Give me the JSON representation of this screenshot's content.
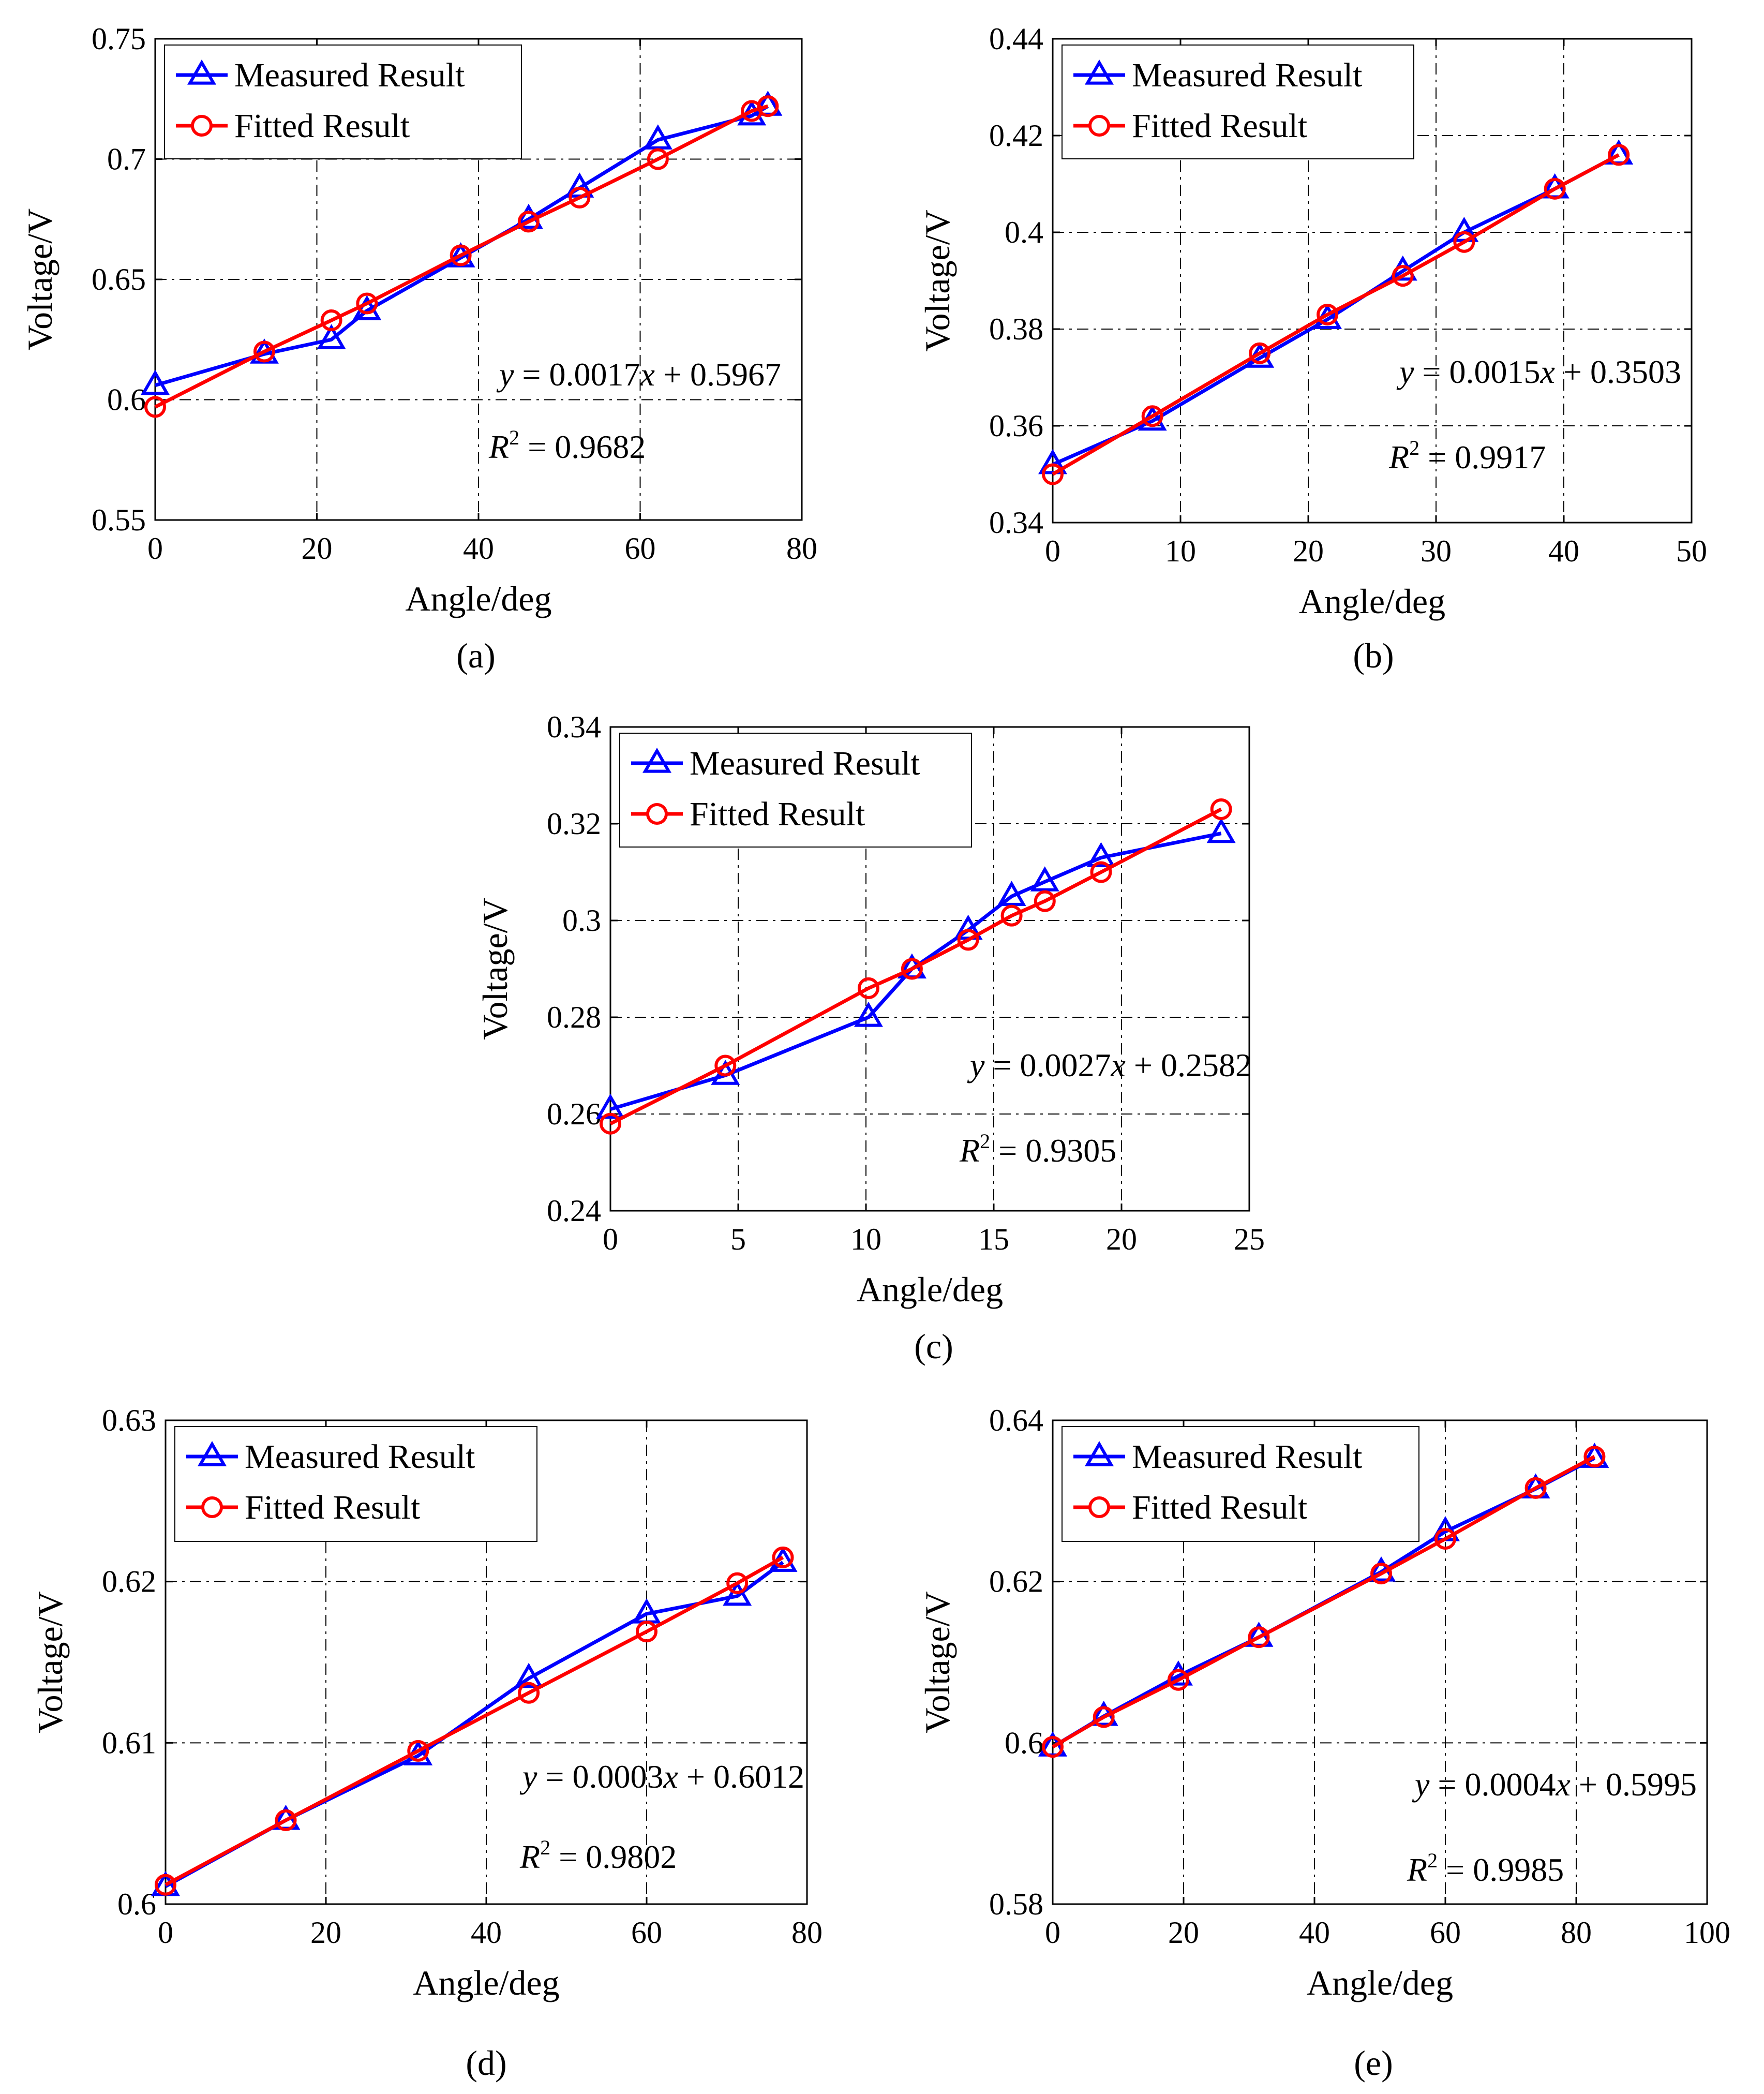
{
  "figure": {
    "background": "#ffffff"
  },
  "colors": {
    "measured": "#0000ff",
    "fitted": "#ff0000",
    "axis": "#000000",
    "grid": "#000000"
  },
  "chart_data": [
    {
      "id": "a",
      "type": "line",
      "panel_label": "(a)",
      "xlabel": "Angle/deg",
      "ylabel": "Voltage/V",
      "xlim": [
        0,
        80
      ],
      "ylim": [
        0.55,
        0.75
      ],
      "x_ticks": [
        0,
        20,
        40,
        60,
        80
      ],
      "y_ticks": [
        0.55,
        0.6,
        0.65,
        0.7,
        0.75
      ],
      "x_tick_labels": [
        "0",
        "20",
        "40",
        "60",
        "80"
      ],
      "y_tick_labels": [
        "0.55",
        "0.6",
        "0.65",
        "0.7",
        "0.75"
      ],
      "grid": true,
      "legend": {
        "position": "top-left",
        "entries": [
          "Measured Result",
          "Fitted Result"
        ]
      },
      "equation": {
        "lhs": "y",
        "eq": " = 0.0017",
        "x": "x",
        "rest": " + 0.5967"
      },
      "r2": {
        "r": "R",
        "sup": "2",
        "rest": " = 0.9682"
      },
      "series": [
        {
          "name": "Measured Result",
          "marker": "triangle",
          "x": [
            0,
            13.5,
            21.8,
            26.2,
            37.8,
            46.2,
            52.5,
            62.2,
            73.8,
            75.8
          ],
          "y": [
            0.606,
            0.619,
            0.625,
            0.637,
            0.659,
            0.675,
            0.688,
            0.708,
            0.718,
            0.722
          ]
        },
        {
          "name": "Fitted Result",
          "marker": "circle",
          "x": [
            0,
            13.5,
            21.8,
            26.2,
            37.8,
            46.2,
            52.5,
            62.2,
            73.8,
            75.8
          ],
          "y": [
            0.597,
            0.62,
            0.633,
            0.64,
            0.66,
            0.674,
            0.684,
            0.7,
            0.72,
            0.722
          ]
        }
      ]
    },
    {
      "id": "b",
      "type": "line",
      "panel_label": "(b)",
      "xlabel": "Angle/deg",
      "ylabel": "Voltage/V",
      "xlim": [
        0,
        50
      ],
      "ylim": [
        0.34,
        0.44
      ],
      "x_ticks": [
        0,
        10,
        20,
        30,
        40,
        50
      ],
      "y_ticks": [
        0.34,
        0.36,
        0.38,
        0.4,
        0.42,
        0.44
      ],
      "x_tick_labels": [
        "0",
        "10",
        "20",
        "30",
        "40",
        "50"
      ],
      "y_tick_labels": [
        "0.34",
        "0.36",
        "0.38",
        "0.4",
        "0.42",
        "0.44"
      ],
      "grid": true,
      "legend": {
        "position": "top-left",
        "entries": [
          "Measured Result",
          "Fitted Result"
        ]
      },
      "equation": {
        "lhs": "y",
        "eq": " = 0.0015",
        "x": "x",
        "rest": " + 0.3503"
      },
      "r2": {
        "r": "R",
        "sup": "2",
        "rest": " = 0.9917"
      },
      "series": [
        {
          "name": "Measured Result",
          "marker": "triangle",
          "x": [
            0,
            7.8,
            16.2,
            21.5,
            27.4,
            32.2,
            39.3,
            44.3
          ],
          "y": [
            0.352,
            0.361,
            0.374,
            0.382,
            0.392,
            0.4,
            0.409,
            0.416
          ]
        },
        {
          "name": "Fitted Result",
          "marker": "circle",
          "x": [
            0,
            7.8,
            16.2,
            21.5,
            27.4,
            32.2,
            39.3,
            44.3
          ],
          "y": [
            0.35,
            0.362,
            0.375,
            0.383,
            0.391,
            0.398,
            0.409,
            0.416
          ]
        }
      ]
    },
    {
      "id": "c",
      "type": "line",
      "panel_label": "(c)",
      "xlabel": "Angle/deg",
      "ylabel": "Voltage/V",
      "xlim": [
        0,
        25
      ],
      "ylim": [
        0.24,
        0.34
      ],
      "x_ticks": [
        0,
        5,
        10,
        15,
        20,
        25
      ],
      "y_ticks": [
        0.24,
        0.26,
        0.28,
        0.3,
        0.32,
        0.34
      ],
      "x_tick_labels": [
        "0",
        "5",
        "10",
        "15",
        "20",
        "25"
      ],
      "y_tick_labels": [
        "0.24",
        "0.26",
        "0.28",
        "0.3",
        "0.32",
        "0.34"
      ],
      "grid": true,
      "legend": {
        "position": "top-left",
        "entries": [
          "Measured Result",
          "Fitted Result"
        ]
      },
      "equation": {
        "lhs": "y",
        "eq": " = 0.0027",
        "x": "x",
        "rest": " + 0.2582"
      },
      "r2": {
        "r": "R",
        "sup": "2",
        "rest": " = 0.9305"
      },
      "series": [
        {
          "name": "Measured Result",
          "marker": "triangle",
          "x": [
            0,
            4.5,
            10.1,
            11.8,
            14.0,
            15.7,
            17.0,
            19.2,
            23.9
          ],
          "y": [
            0.261,
            0.268,
            0.28,
            0.29,
            0.298,
            0.305,
            0.308,
            0.313,
            0.318
          ]
        },
        {
          "name": "Fitted Result",
          "marker": "circle",
          "x": [
            0,
            4.5,
            10.1,
            11.8,
            14.0,
            15.7,
            17.0,
            19.2,
            23.9
          ],
          "y": [
            0.258,
            0.27,
            0.286,
            0.29,
            0.296,
            0.301,
            0.304,
            0.31,
            0.323
          ]
        }
      ]
    },
    {
      "id": "d",
      "type": "line",
      "panel_label": "(d)",
      "xlabel": "Angle/deg",
      "ylabel": "Voltage/V",
      "xlim": [
        0,
        80
      ],
      "ylim": [
        0.6,
        0.63
      ],
      "x_ticks": [
        0,
        20,
        40,
        60,
        80
      ],
      "y_ticks": [
        0.6,
        0.61,
        0.62,
        0.63
      ],
      "x_tick_labels": [
        "0",
        "20",
        "40",
        "60",
        "80"
      ],
      "y_tick_labels": [
        "0.6",
        "0.61",
        "0.62",
        "0.63"
      ],
      "grid": true,
      "legend": {
        "position": "top-left",
        "entries": [
          "Measured Result",
          "Fitted Result"
        ]
      },
      "equation": {
        "lhs": "y",
        "eq": " = 0.0003",
        "x": "x",
        "rest": " + 0.6012"
      },
      "r2": {
        "r": "R",
        "sup": "2",
        "rest": " = 0.9802"
      },
      "series": [
        {
          "name": "Measured Result",
          "marker": "triangle",
          "x": [
            0,
            15.0,
            31.5,
            45.3,
            60.0,
            71.3,
            77.0
          ],
          "y": [
            0.6011,
            0.6052,
            0.6092,
            0.614,
            0.618,
            0.6191,
            0.6212
          ]
        },
        {
          "name": "Fitted Result",
          "marker": "circle",
          "x": [
            0,
            15.0,
            31.5,
            45.3,
            60.0,
            71.3,
            77.0
          ],
          "y": [
            0.6012,
            0.6052,
            0.6095,
            0.6131,
            0.6169,
            0.6199,
            0.6215
          ]
        }
      ]
    },
    {
      "id": "e",
      "type": "line",
      "panel_label": "(e)",
      "xlabel": "Angle/deg",
      "ylabel": "Voltage/V",
      "xlim": [
        0,
        100
      ],
      "ylim": [
        0.58,
        0.64
      ],
      "x_ticks": [
        0,
        20,
        40,
        60,
        80,
        100
      ],
      "y_ticks": [
        0.58,
        0.6,
        0.62,
        0.64
      ],
      "x_tick_labels": [
        "0",
        "20",
        "40",
        "60",
        "80",
        "100"
      ],
      "y_tick_labels": [
        "0.58",
        "0.6",
        "0.62",
        "0.64"
      ],
      "grid": true,
      "legend": {
        "position": "top-left",
        "entries": [
          "Measured Result",
          "Fitted Result"
        ]
      },
      "equation": {
        "lhs": "y",
        "eq": " = 0.0004",
        "x": "x",
        "rest": " + 0.5995"
      },
      "r2": {
        "r": "R",
        "sup": "2",
        "rest": " = 0.9985"
      },
      "series": [
        {
          "name": "Measured Result",
          "marker": "triangle",
          "x": [
            0,
            7.8,
            19.2,
            31.5,
            50.2,
            60.0,
            73.8,
            82.8
          ],
          "y": [
            0.5995,
            0.6033,
            0.6083,
            0.6131,
            0.6212,
            0.6262,
            0.6315,
            0.6353
          ]
        },
        {
          "name": "Fitted Result",
          "marker": "circle",
          "x": [
            0,
            7.8,
            19.2,
            31.5,
            50.2,
            60.0,
            73.8,
            82.8
          ],
          "y": [
            0.5995,
            0.6032,
            0.6078,
            0.6131,
            0.621,
            0.6253,
            0.6316,
            0.6355
          ]
        }
      ]
    }
  ]
}
